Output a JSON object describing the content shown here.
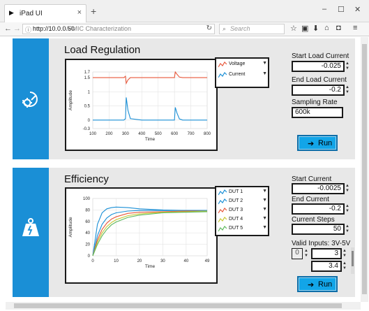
{
  "browser": {
    "tab_title": "iPad UI",
    "tab_close": "×",
    "new_tab": "+",
    "url_host": "http://10.0.0.50",
    "url_path": "/PMIC Characterization",
    "search_placeholder": "Search",
    "window_controls": [
      "–",
      "☐",
      "✕"
    ]
  },
  "load_regulation": {
    "title": "Load Regulation",
    "legend": [
      {
        "label": "Voltage",
        "color": "#e8573a"
      },
      {
        "label": "Current",
        "color": "#1a8fd6"
      }
    ],
    "start_load_current": {
      "label": "Start Load Current",
      "value": "-0.025"
    },
    "end_load_current": {
      "label": "End Load Current",
      "value": "-0.2"
    },
    "sampling_rate": {
      "label": "Sampling Rate",
      "value": "600k"
    },
    "run_label": "Run"
  },
  "efficiency": {
    "title": "Efficiency",
    "legend": [
      {
        "label": "DUT 1",
        "color": "#1a8fd6"
      },
      {
        "label": "DUT 2",
        "color": "#1a8fd6"
      },
      {
        "label": "DUT 3",
        "color": "#e8573a"
      },
      {
        "label": "DUT 4",
        "color": "#c8c832"
      },
      {
        "label": "DUT 5",
        "color": "#5cb85c"
      }
    ],
    "start_current": {
      "label": "Start Current",
      "value": "-0.0025"
    },
    "end_current": {
      "label": "End Current",
      "value": "-0.2"
    },
    "current_steps": {
      "label": "Current Steps",
      "value": "50"
    },
    "valid_inputs": {
      "label": "Valid Inputs: 3V-5V",
      "index": "0",
      "v1": "3",
      "v2": "3.4"
    },
    "run_label": "Run"
  },
  "chart_data": [
    {
      "type": "line",
      "xlabel": "Time",
      "ylabel": "Amplitude",
      "xlim": [
        100,
        800
      ],
      "ylim": [
        -0.3,
        1.7
      ],
      "x_ticks": [
        "100",
        "200",
        "300",
        "400",
        "500",
        "600",
        "700",
        "800"
      ],
      "y_ticks": [
        "1.7",
        "1.5",
        "1",
        "0.5",
        "0",
        "-0.3"
      ],
      "grid": true,
      "series": [
        {
          "name": "Voltage",
          "color": "#e8573a",
          "x": [
            100,
            200,
            290,
            300,
            305,
            315,
            330,
            400,
            500,
            600,
            605,
            615,
            630,
            650,
            700,
            800
          ],
          "y": [
            1.5,
            1.5,
            1.5,
            1.55,
            1.3,
            1.42,
            1.5,
            1.5,
            1.5,
            1.5,
            1.7,
            1.62,
            1.52,
            1.5,
            1.5,
            1.5
          ]
        },
        {
          "name": "Current",
          "color": "#1a8fd6",
          "x": [
            100,
            200,
            290,
            300,
            305,
            315,
            330,
            400,
            500,
            600,
            605,
            615,
            630,
            650,
            700,
            800
          ],
          "y": [
            0,
            0,
            0,
            0.05,
            0.8,
            0.35,
            0.05,
            0,
            0,
            0,
            0.45,
            0.25,
            0.04,
            0,
            0,
            0
          ]
        }
      ]
    },
    {
      "type": "line",
      "xlabel": "Time",
      "ylabel": "Amplitude",
      "xlim": [
        0,
        49
      ],
      "ylim": [
        0,
        100
      ],
      "x_ticks": [
        "0",
        "10",
        "20",
        "30",
        "40",
        "49"
      ],
      "y_ticks": [
        "100",
        "80",
        "60",
        "40",
        "20",
        "0"
      ],
      "grid": true,
      "series": [
        {
          "name": "DUT 1",
          "color": "#1a8fd6",
          "x": [
            0,
            2,
            4,
            6,
            8,
            10,
            15,
            20,
            30,
            40,
            49
          ],
          "y": [
            0,
            55,
            75,
            82,
            84,
            85,
            84,
            82,
            80,
            79,
            79
          ]
        },
        {
          "name": "DUT 2",
          "color": "#1a8fd6",
          "x": [
            0,
            2,
            4,
            6,
            8,
            10,
            15,
            20,
            30,
            40,
            49
          ],
          "y": [
            0,
            35,
            55,
            66,
            72,
            75,
            78,
            79,
            79,
            79,
            79
          ]
        },
        {
          "name": "DUT 3",
          "color": "#e8573a",
          "x": [
            0,
            2,
            4,
            6,
            8,
            10,
            15,
            20,
            30,
            40,
            49
          ],
          "y": [
            0,
            28,
            46,
            57,
            64,
            68,
            74,
            76,
            77,
            78,
            78
          ]
        },
        {
          "name": "DUT 4",
          "color": "#c8c832",
          "x": [
            0,
            2,
            4,
            6,
            8,
            10,
            15,
            20,
            30,
            40,
            49
          ],
          "y": [
            0,
            24,
            40,
            51,
            58,
            63,
            70,
            73,
            76,
            77,
            78
          ]
        },
        {
          "name": "DUT 5",
          "color": "#5cb85c",
          "x": [
            0,
            2,
            4,
            6,
            8,
            10,
            15,
            20,
            30,
            40,
            49
          ],
          "y": [
            0,
            20,
            35,
            46,
            54,
            59,
            67,
            71,
            75,
            76,
            77
          ]
        }
      ]
    }
  ]
}
